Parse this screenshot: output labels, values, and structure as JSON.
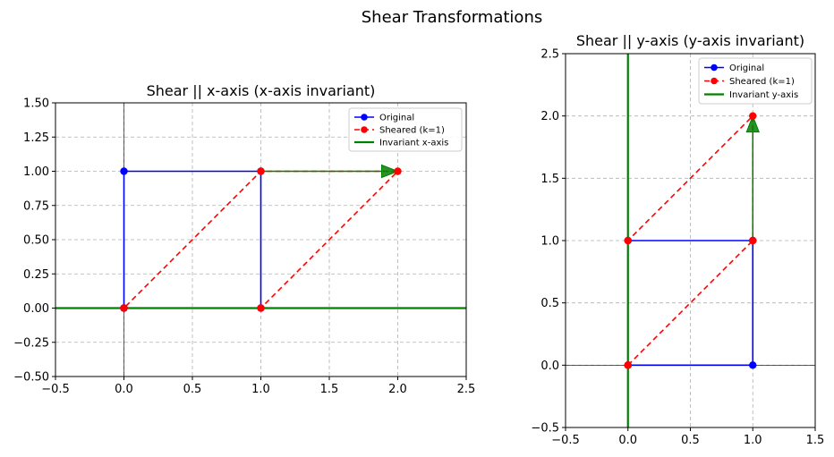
{
  "figure": {
    "suptitle": "Shear Transformations"
  },
  "chart_data": [
    {
      "type": "line",
      "title": "Shear || x-axis (x-axis invariant)",
      "xlabel": "",
      "ylabel": "",
      "xlim": [
        -0.5,
        2.5
      ],
      "ylim": [
        -0.5,
        1.5
      ],
      "xticks": [
        -0.5,
        0.0,
        0.5,
        1.0,
        1.5,
        2.0,
        2.5
      ],
      "xtick_labels": [
        "−0.5",
        "0.0",
        "0.5",
        "1.0",
        "1.5",
        "2.0",
        "2.5"
      ],
      "yticks": [
        -0.5,
        -0.25,
        0.0,
        0.25,
        0.5,
        0.75,
        1.0,
        1.25,
        1.5
      ],
      "ytick_labels": [
        "−0.50",
        "−0.25",
        "0.00",
        "0.25",
        "0.50",
        "0.75",
        "1.00",
        "1.25",
        "1.50"
      ],
      "grid": true,
      "legend_position": "upper right",
      "invariant_axis": "x",
      "series": [
        {
          "name": "Original",
          "color": "#0000ff",
          "linestyle": "solid",
          "marker": "o",
          "points": [
            [
              0,
              0
            ],
            [
              1,
              0
            ],
            [
              1,
              1
            ],
            [
              0,
              1
            ],
            [
              0,
              0
            ]
          ]
        },
        {
          "name": "Sheared (k=1)",
          "color": "#ff0000",
          "linestyle": "dashed",
          "marker": "o",
          "points": [
            [
              0,
              0
            ],
            [
              1,
              0
            ],
            [
              2,
              1
            ],
            [
              1,
              1
            ],
            [
              0,
              0
            ]
          ]
        },
        {
          "name": "Invariant x-axis",
          "color": "#008000",
          "linestyle": "solid",
          "marker": "none",
          "points": [
            [
              -0.5,
              0
            ],
            [
              2.5,
              0
            ]
          ]
        }
      ],
      "arrows": [
        {
          "from": [
            1,
            1
          ],
          "to": [
            2,
            1
          ],
          "color": "#008000"
        }
      ]
    },
    {
      "type": "line",
      "title": "Shear || y-axis (y-axis invariant)",
      "xlabel": "",
      "ylabel": "",
      "xlim": [
        -0.5,
        1.5
      ],
      "ylim": [
        -0.5,
        2.5
      ],
      "xticks": [
        -0.5,
        0.0,
        0.5,
        1.0,
        1.5
      ],
      "xtick_labels": [
        "−0.5",
        "0.0",
        "0.5",
        "1.0",
        "1.5"
      ],
      "yticks": [
        -0.5,
        0.0,
        0.5,
        1.0,
        1.5,
        2.0,
        2.5
      ],
      "ytick_labels": [
        "−0.5",
        "0.0",
        "0.5",
        "1.0",
        "1.5",
        "2.0",
        "2.5"
      ],
      "grid": true,
      "legend_position": "upper right",
      "invariant_axis": "y",
      "series": [
        {
          "name": "Original",
          "color": "#0000ff",
          "linestyle": "solid",
          "marker": "o",
          "points": [
            [
              0,
              0
            ],
            [
              1,
              0
            ],
            [
              1,
              1
            ],
            [
              0,
              1
            ],
            [
              0,
              0
            ]
          ]
        },
        {
          "name": "Sheared (k=1)",
          "color": "#ff0000",
          "linestyle": "dashed",
          "marker": "o",
          "points": [
            [
              0,
              0
            ],
            [
              1,
              1
            ],
            [
              1,
              2
            ],
            [
              0,
              1
            ],
            [
              0,
              0
            ]
          ]
        },
        {
          "name": "Invariant y-axis",
          "color": "#008000",
          "linestyle": "solid",
          "marker": "none",
          "points": [
            [
              0,
              -0.5
            ],
            [
              0,
              2.5
            ]
          ]
        }
      ],
      "arrows": [
        {
          "from": [
            1,
            1
          ],
          "to": [
            1,
            2
          ],
          "color": "#008000"
        }
      ]
    }
  ]
}
